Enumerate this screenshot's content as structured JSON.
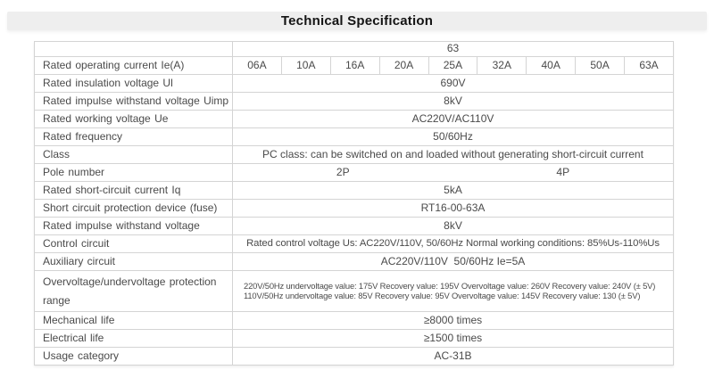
{
  "title": "Technical Specification",
  "colors": {
    "title_bar_bg": "#eeeeee",
    "title_text": "#141414",
    "table_border": "#d4d4d4",
    "table_text": "#4a4a4a",
    "page_bg": "#ffffff"
  },
  "table": {
    "size_header": "63",
    "operating_current": {
      "label": "Rated operating current Ie(A)",
      "values": [
        "06A",
        "10A",
        "16A",
        "20A",
        "25A",
        "32A",
        "40A",
        "50A",
        "63A"
      ]
    },
    "insulation": {
      "label": "Rated insulation voltage Ul",
      "value": "690V"
    },
    "impulse_uimp": {
      "label": "Rated impulse withstand voltage Uimp",
      "value": "8kV"
    },
    "working_voltage": {
      "label": "Rated working voltage Ue",
      "value": "AC220V/AC110V"
    },
    "frequency": {
      "label": "Rated frequency",
      "value": "50/60Hz"
    },
    "class_row": {
      "label": "Class",
      "value": "PC class: can be switched on and loaded without generating short-circuit current"
    },
    "pole_number": {
      "label": "Pole number",
      "left": "2P",
      "right": "4P"
    },
    "short_circuit_current": {
      "label": "Rated short-circuit current Iq",
      "value": "5kA"
    },
    "fuse": {
      "label": "Short circuit protection device (fuse)",
      "value": "RT16-00-63A"
    },
    "impulse": {
      "label": "Rated impulse withstand voltage",
      "value": "8kV"
    },
    "control_circuit": {
      "label": "Control circuit",
      "value": "Rated control voltage Us: AC220V/110V, 50/60Hz Normal working conditions: 85%Us-110%Us"
    },
    "auxiliary_circuit": {
      "label": "Auxiliary circuit",
      "value": "AC220V/110V  50/60Hz Ie=5A"
    },
    "protection_range": {
      "label": "Overvoltage/undervoltage protection range",
      "line1": "220V/50Hz undervoltage value: 175V Recovery value: 195V Overvoltage value: 260V Recovery value: 240V (± 5V)",
      "line2": "110V/50Hz undervoltage value: 85V Recovery value: 95V Overvoltage value: 145V Recovery value: 130 (± 5V)"
    },
    "mechanical_life": {
      "label": "Mechanical life",
      "value": "≥8000 times"
    },
    "electrical_life": {
      "label": "Electrical life",
      "value": "≥1500 times"
    },
    "usage_category": {
      "label": "Usage category",
      "value": "AC-31B"
    }
  }
}
